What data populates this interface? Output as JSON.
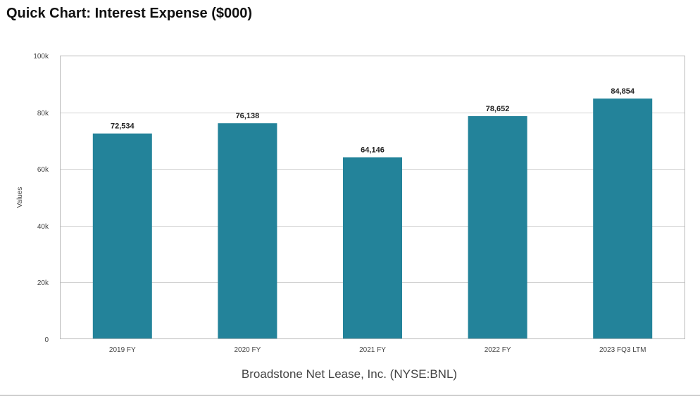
{
  "title": "Quick Chart: Interest Expense ($000)",
  "chart_data": {
    "type": "bar",
    "title": "Quick Chart: Interest Expense ($000)",
    "categories": [
      "2019 FY",
      "2020 FY",
      "2021 FY",
      "2022 FY",
      "2023 FQ3 LTM"
    ],
    "values": [
      72534,
      76138,
      64146,
      78652,
      84854
    ],
    "data_labels": [
      "72,534",
      "76,138",
      "64,146",
      "78,652",
      "84,854"
    ],
    "ylabel": "Values",
    "xlabel": "Broadstone Net Lease, Inc. (NYSE:BNL)",
    "ylim": [
      0,
      100000
    ],
    "yticks": [
      0,
      20000,
      40000,
      60000,
      80000,
      100000
    ],
    "ytick_labels": [
      "0",
      "20k",
      "40k",
      "60k",
      "80k",
      "100k"
    ],
    "grid": true,
    "legend": "none",
    "bar_color": "#23839a"
  }
}
